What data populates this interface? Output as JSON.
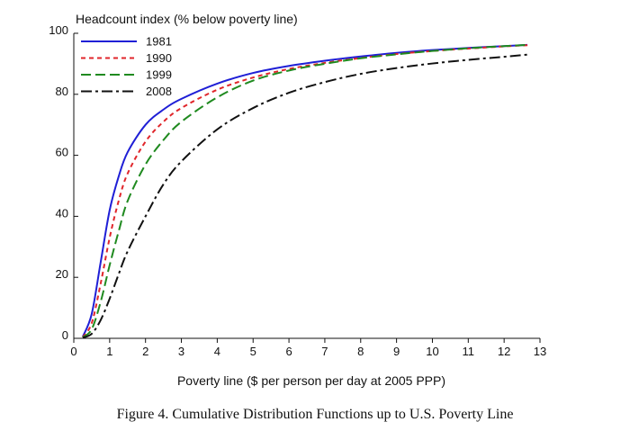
{
  "chart_data": {
    "type": "line",
    "title": "",
    "ylabel": "Headcount index (% below poverty line)",
    "xlabel": "Poverty line ($ per person per day at 2005 PPP)",
    "xlim": [
      0,
      13
    ],
    "ylim": [
      0,
      100
    ],
    "xticks": [
      "0",
      "1",
      "2",
      "3",
      "4",
      "5",
      "6",
      "7",
      "8",
      "9",
      "10",
      "11",
      "12",
      "13"
    ],
    "yticks": [
      "0",
      "20",
      "40",
      "60",
      "80",
      "100"
    ],
    "legend_position": "top-left",
    "grid": false,
    "x": [
      0.25,
      0.5,
      0.75,
      1,
      1.25,
      1.5,
      2,
      2.5,
      3,
      4,
      5,
      6,
      7,
      8,
      9,
      10,
      11,
      12,
      12.65
    ],
    "series": [
      {
        "name": "1981",
        "color": "#1f1fd6",
        "dash": "solid",
        "values": [
          0.5,
          8,
          25,
          42,
          53,
          61,
          70,
          75,
          78.5,
          83.5,
          87,
          89.3,
          91,
          92.4,
          93.6,
          94.5,
          95.2,
          95.8,
          96.2
        ]
      },
      {
        "name": "1990",
        "color": "#e0262b",
        "dash": "short",
        "values": [
          0.4,
          5,
          18,
          33,
          45,
          54,
          64.5,
          71,
          75.5,
          81.5,
          85.5,
          88.3,
          90.3,
          91.9,
          93.2,
          94.2,
          95.0,
          95.7,
          96.1
        ]
      },
      {
        "name": "1999",
        "color": "#1f8a1f",
        "dash": "long",
        "values": [
          0.3,
          3,
          12,
          24,
          35,
          45,
          57,
          65,
          71,
          79,
          84.5,
          87.8,
          90,
          91.8,
          93.1,
          94.2,
          95.1,
          95.8,
          96.2
        ]
      },
      {
        "name": "2008",
        "color": "#111111",
        "dash": "dashdot",
        "values": [
          0.2,
          1.5,
          6,
          13,
          21,
          28.5,
          40,
          50.5,
          58,
          68.5,
          75.5,
          80.5,
          84,
          86.7,
          88.6,
          90.1,
          91.3,
          92.3,
          93
        ]
      }
    ]
  },
  "caption": "Figure 4.  Cumulative Distribution Functions up to U.S. Poverty Line"
}
